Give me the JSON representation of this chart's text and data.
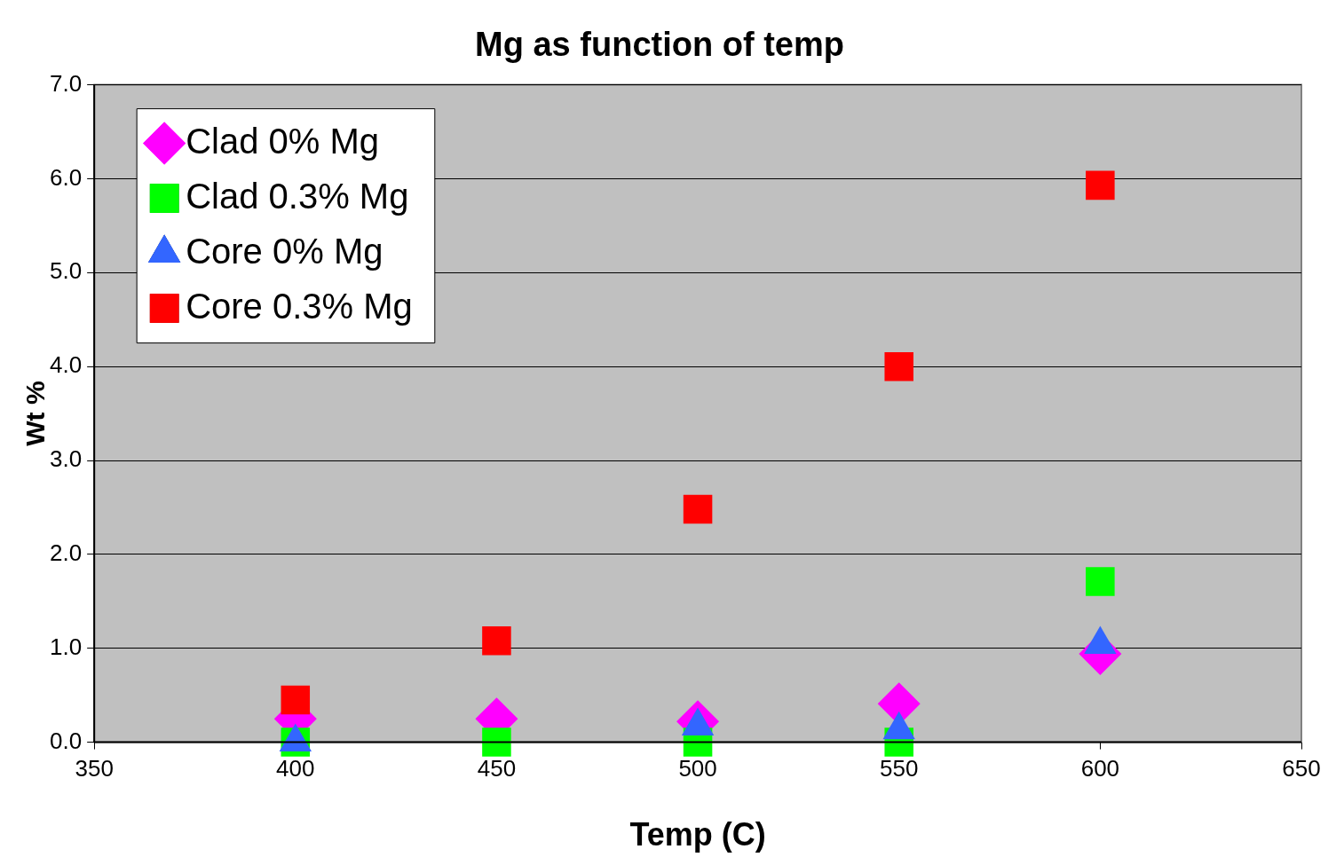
{
  "chart_data": {
    "type": "scatter",
    "title": "Mg as function of temp",
    "xlabel": "Temp (C)",
    "ylabel": "Wt %",
    "x": [
      400,
      450,
      500,
      550,
      600
    ],
    "series": [
      {
        "name": "Clad 0% Mg",
        "color": "#ff00ff",
        "marker": "diamond",
        "values": [
          0.25,
          0.25,
          0.22,
          0.41,
          0.94
        ]
      },
      {
        "name": "Clad 0.3% Mg",
        "color": "#00ff00",
        "marker": "square",
        "values": [
          0,
          0,
          0,
          0,
          1.71
        ]
      },
      {
        "name": "Core 0% Mg",
        "color": "#3366ff",
        "marker": "triangle",
        "values": [
          0,
          null,
          0.17,
          0.13,
          1.04
        ]
      },
      {
        "name": "Core 0.3% Mg",
        "color": "#ff0000",
        "marker": "square",
        "values": [
          0.45,
          1.08,
          2.48,
          4.0,
          5.93
        ]
      }
    ],
    "xlim": [
      350,
      650
    ],
    "xticks": [
      350,
      400,
      450,
      500,
      550,
      600,
      650
    ],
    "ylim": [
      0,
      7
    ],
    "yticks": [
      {
        "value": 0,
        "label": "0.0"
      },
      {
        "value": 1,
        "label": "1.0"
      },
      {
        "value": 2,
        "label": "2.0"
      },
      {
        "value": 3,
        "label": "3.0"
      },
      {
        "value": 4,
        "label": "4.0"
      },
      {
        "value": 5,
        "label": "5.0"
      },
      {
        "value": 6,
        "label": "6.0"
      },
      {
        "value": 7,
        "label": "7.0"
      }
    ],
    "grid": "y",
    "legend": "top left"
  }
}
